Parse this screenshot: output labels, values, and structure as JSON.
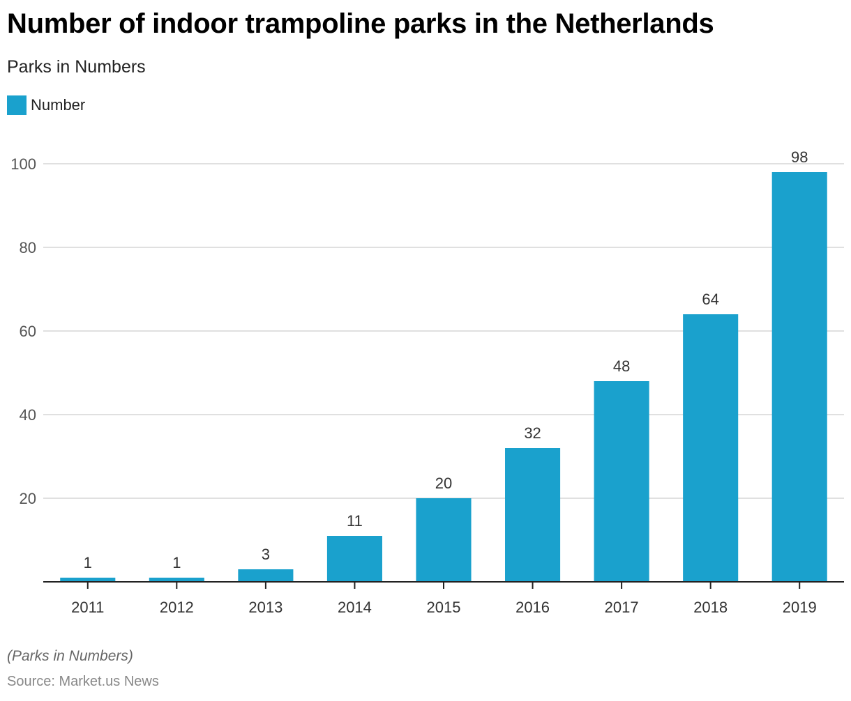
{
  "title": "Number of indoor trampoline parks in the Netherlands",
  "subtitle": "Parks in Numbers",
  "legend": {
    "label": "Number",
    "color": "#1aa1cd"
  },
  "footer": {
    "note": "(Parks in Numbers)",
    "source": "Source: Market.us News"
  },
  "chart_data": {
    "type": "bar",
    "title": "Number of indoor trampoline parks in the Netherlands",
    "subtitle": "Parks in Numbers",
    "categories": [
      "2011",
      "2012",
      "2013",
      "2014",
      "2015",
      "2016",
      "2017",
      "2018",
      "2019"
    ],
    "series": [
      {
        "name": "Number",
        "values": [
          1,
          1,
          3,
          11,
          20,
          32,
          48,
          64,
          98
        ],
        "color": "#1aa1cd"
      }
    ],
    "xlabel": "",
    "ylabel": "",
    "ylim": [
      0,
      100
    ],
    "yticks": [
      20,
      40,
      60,
      80,
      100
    ],
    "grid": true,
    "legend_position": "top-left",
    "data_labels": true
  }
}
